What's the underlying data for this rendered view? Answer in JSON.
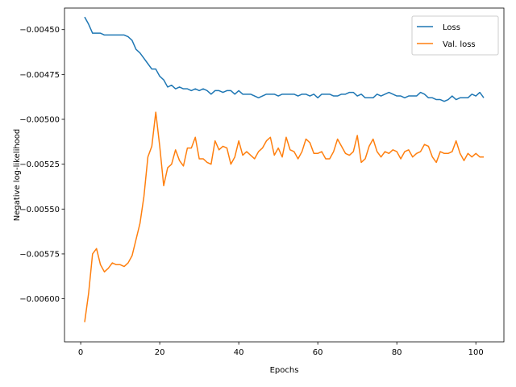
{
  "chart_data": {
    "type": "line",
    "xlabel": "Epochs",
    "ylabel": "Negative log-likelihood",
    "xlim": [
      -4.1,
      107.1
    ],
    "ylim": [
      -0.00624,
      -0.00438
    ],
    "xticks": [
      0,
      20,
      40,
      60,
      80,
      100
    ],
    "xtick_labels": [
      "0",
      "20",
      "40",
      "60",
      "80",
      "100"
    ],
    "yticks": [
      -0.006,
      -0.00575,
      -0.0055,
      -0.00525,
      -0.005,
      -0.00475,
      -0.0045
    ],
    "ytick_labels": [
      "−0.00600",
      "−0.00575",
      "−0.00550",
      "−0.00525",
      "−0.00500",
      "−0.00475",
      "−0.00450"
    ],
    "grid": false,
    "legend": {
      "position": "top-right"
    },
    "x": [
      1,
      2,
      3,
      4,
      5,
      6,
      7,
      8,
      9,
      10,
      11,
      12,
      13,
      14,
      15,
      16,
      17,
      18,
      19,
      20,
      21,
      22,
      23,
      24,
      25,
      26,
      27,
      28,
      29,
      30,
      31,
      32,
      33,
      34,
      35,
      36,
      37,
      38,
      39,
      40,
      41,
      42,
      43,
      44,
      45,
      46,
      47,
      48,
      49,
      50,
      51,
      52,
      53,
      54,
      55,
      56,
      57,
      58,
      59,
      60,
      61,
      62,
      63,
      64,
      65,
      66,
      67,
      68,
      69,
      70,
      71,
      72,
      73,
      74,
      75,
      76,
      77,
      78,
      79,
      80,
      81,
      82,
      83,
      84,
      85,
      86,
      87,
      88,
      89,
      90,
      91,
      92,
      93,
      94,
      95,
      96,
      97,
      98,
      99,
      100,
      101,
      102
    ],
    "series": [
      {
        "name": "Loss",
        "color": "#1f77b4",
        "values": [
          -0.00443,
          -0.00447,
          -0.00452,
          -0.00452,
          -0.00452,
          -0.00453,
          -0.00453,
          -0.00453,
          -0.00453,
          -0.00453,
          -0.00453,
          -0.00454,
          -0.00456,
          -0.00461,
          -0.00463,
          -0.00466,
          -0.00469,
          -0.00472,
          -0.00472,
          -0.00476,
          -0.00478,
          -0.00482,
          -0.00481,
          -0.00483,
          -0.00482,
          -0.00483,
          -0.00483,
          -0.00484,
          -0.00483,
          -0.00484,
          -0.00483,
          -0.00484,
          -0.00486,
          -0.00484,
          -0.00484,
          -0.00485,
          -0.00484,
          -0.00484,
          -0.00486,
          -0.00484,
          -0.00486,
          -0.00486,
          -0.00486,
          -0.00487,
          -0.00488,
          -0.00487,
          -0.00486,
          -0.00486,
          -0.00486,
          -0.00487,
          -0.00486,
          -0.00486,
          -0.00486,
          -0.00486,
          -0.00487,
          -0.00486,
          -0.00486,
          -0.00487,
          -0.00486,
          -0.00488,
          -0.00486,
          -0.00486,
          -0.00486,
          -0.00487,
          -0.00487,
          -0.00486,
          -0.00486,
          -0.00485,
          -0.00485,
          -0.00487,
          -0.00486,
          -0.00488,
          -0.00488,
          -0.00488,
          -0.00486,
          -0.00487,
          -0.00486,
          -0.00485,
          -0.00486,
          -0.00487,
          -0.00487,
          -0.00488,
          -0.00487,
          -0.00487,
          -0.00487,
          -0.00485,
          -0.00486,
          -0.00488,
          -0.00488,
          -0.00489,
          -0.00489,
          -0.0049,
          -0.00489,
          -0.00487,
          -0.00489,
          -0.00488,
          -0.00488,
          -0.00488,
          -0.00486,
          -0.00487,
          -0.00485,
          -0.00488
        ]
      },
      {
        "name": "Val. loss",
        "color": "#ff7f0e",
        "values": [
          -0.00613,
          -0.00597,
          -0.00575,
          -0.00572,
          -0.00581,
          -0.00585,
          -0.00583,
          -0.0058,
          -0.00581,
          -0.00581,
          -0.00582,
          -0.0058,
          -0.00576,
          -0.00567,
          -0.00558,
          -0.00543,
          -0.00521,
          -0.00515,
          -0.00496,
          -0.00515,
          -0.00537,
          -0.00527,
          -0.00525,
          -0.00517,
          -0.00523,
          -0.00526,
          -0.00516,
          -0.00516,
          -0.0051,
          -0.00522,
          -0.00522,
          -0.00524,
          -0.00525,
          -0.00512,
          -0.00517,
          -0.00515,
          -0.00516,
          -0.00525,
          -0.00521,
          -0.00512,
          -0.0052,
          -0.00518,
          -0.0052,
          -0.00522,
          -0.00518,
          -0.00516,
          -0.00512,
          -0.0051,
          -0.0052,
          -0.00516,
          -0.00521,
          -0.0051,
          -0.00517,
          -0.00518,
          -0.00522,
          -0.00518,
          -0.00511,
          -0.00513,
          -0.00519,
          -0.00519,
          -0.00518,
          -0.00522,
          -0.00522,
          -0.00518,
          -0.00511,
          -0.00515,
          -0.00519,
          -0.0052,
          -0.00518,
          -0.00509,
          -0.00524,
          -0.00522,
          -0.00515,
          -0.00511,
          -0.00518,
          -0.00521,
          -0.00518,
          -0.00519,
          -0.00517,
          -0.00518,
          -0.00522,
          -0.00518,
          -0.00517,
          -0.00521,
          -0.00519,
          -0.00518,
          -0.00514,
          -0.00515,
          -0.00521,
          -0.00524,
          -0.00518,
          -0.00519,
          -0.00519,
          -0.00518,
          -0.00512,
          -0.00519,
          -0.00523,
          -0.00519,
          -0.00521,
          -0.00519,
          -0.00521,
          -0.00521
        ]
      }
    ]
  }
}
